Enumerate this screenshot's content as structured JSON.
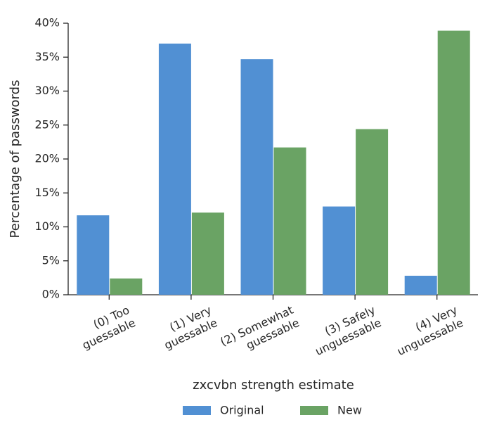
{
  "chart_data": {
    "type": "bar",
    "x_label": "zxcvbn strength estimate",
    "y_label": "Percentage of passwords",
    "categories": [
      "(0) Too\nguessable",
      "(1) Very\nguessable",
      "(2) Somewhat\nguessable",
      "(3) Safely\nunguessable",
      "(4) Very\nunguessable"
    ],
    "series": [
      {
        "name": "Original",
        "color": "#5190d3",
        "values": [
          11.7,
          37.0,
          34.7,
          13.0,
          2.8
        ]
      },
      {
        "name": "New",
        "color": "#6aa364",
        "values": [
          2.4,
          12.1,
          21.7,
          24.4,
          38.9
        ]
      }
    ],
    "ylim": [
      0,
      40
    ],
    "yticks": [
      {
        "value": 0,
        "label": "0%"
      },
      {
        "value": 5,
        "label": "5%"
      },
      {
        "value": 10,
        "label": "10%"
      },
      {
        "value": 15,
        "label": "15%"
      },
      {
        "value": 20,
        "label": "20%"
      },
      {
        "value": 25,
        "label": "25%"
      },
      {
        "value": 30,
        "label": "30%"
      },
      {
        "value": 35,
        "label": "35%"
      },
      {
        "value": 40,
        "label": "40%"
      }
    ],
    "legend": "bottom"
  }
}
